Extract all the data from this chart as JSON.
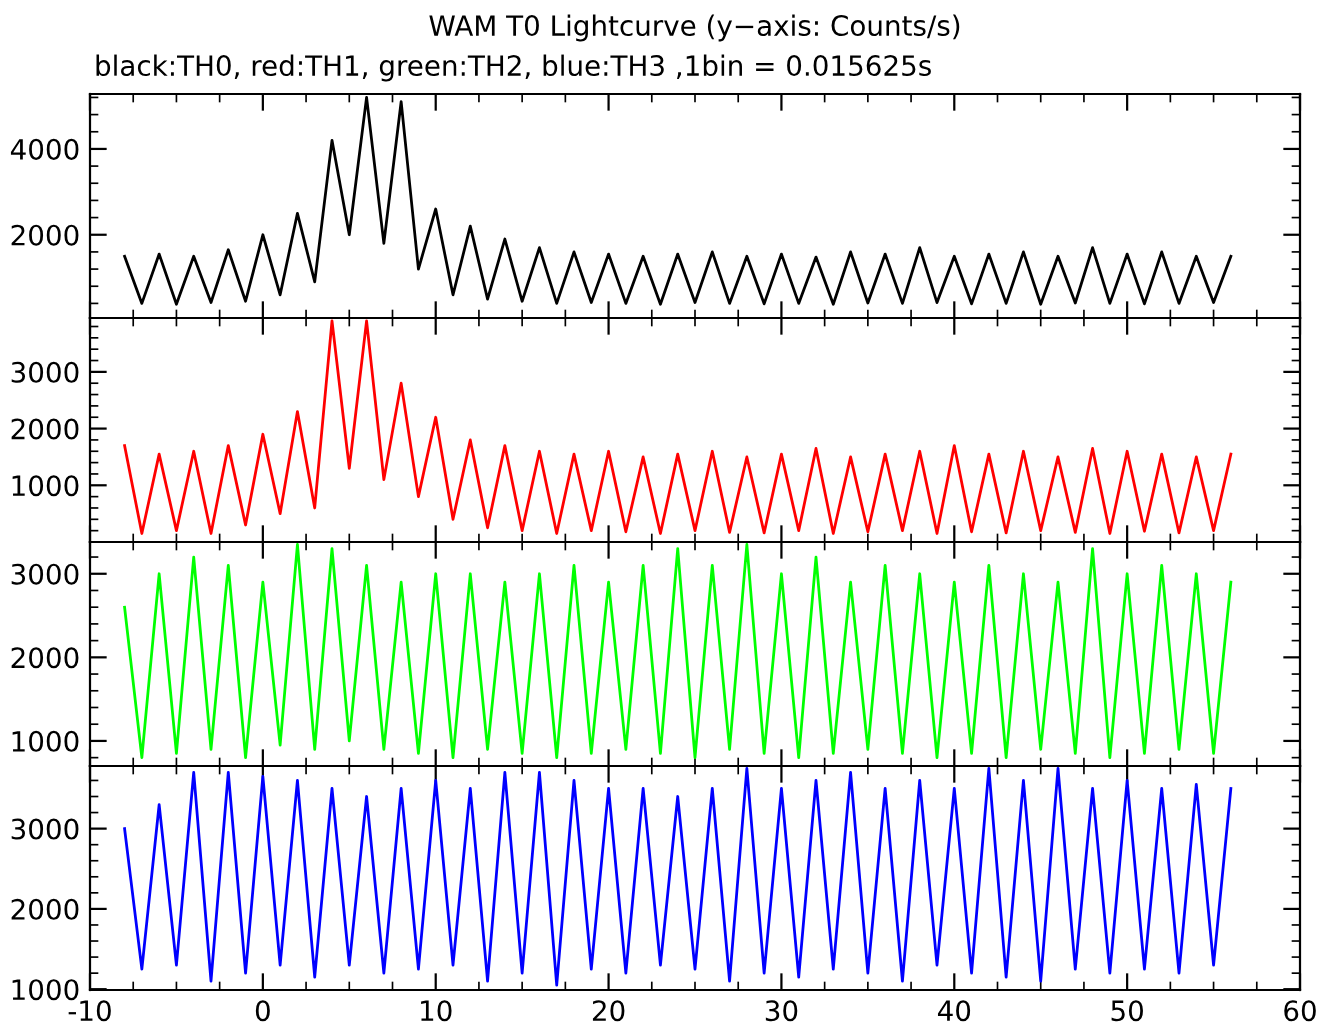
{
  "chart_data": [
    {
      "type": "line",
      "title": "WAM T0 Lightcurve (y−axis: Counts/s)",
      "subtitle": "black:TH0, red:TH1, green:TH2, blue:TH3 ,1bin = 0.015625s",
      "color": "#000000",
      "x": [
        -8,
        -7,
        -6,
        -5,
        -4,
        -3,
        -2,
        -1,
        0,
        1,
        2,
        3,
        4,
        5,
        6,
        7,
        8,
        9,
        10,
        11,
        12,
        13,
        14,
        15,
        16,
        17,
        18,
        19,
        20,
        21,
        22,
        23,
        24,
        25,
        26,
        27,
        28,
        29,
        30,
        31,
        32,
        33,
        34,
        35,
        36,
        37,
        38,
        39,
        40,
        41,
        42,
        43,
        44,
        45,
        46,
        47,
        48,
        49,
        50,
        51,
        52,
        53,
        54,
        55,
        56
      ],
      "values": [
        1500,
        400,
        1550,
        380,
        1500,
        420,
        1650,
        450,
        2000,
        600,
        2500,
        900,
        4200,
        2000,
        5200,
        1800,
        5100,
        1200,
        2600,
        600,
        2200,
        500,
        1900,
        450,
        1700,
        400,
        1600,
        420,
        1550,
        400,
        1500,
        380,
        1550,
        420,
        1600,
        400,
        1500,
        390,
        1550,
        400,
        1480,
        380,
        1600,
        410,
        1550,
        400,
        1700,
        420,
        1500,
        390,
        1550,
        400,
        1600,
        380,
        1500,
        410,
        1700,
        400,
        1550,
        390,
        1600,
        400,
        1500,
        420,
        1500
      ],
      "xlim": [
        -10,
        60
      ],
      "xticks": [
        -10,
        0,
        10,
        20,
        30,
        40,
        50,
        60
      ],
      "ylim": [
        60,
        5280
      ],
      "yticks": [
        2000,
        4000
      ],
      "tick_labels": "y"
    },
    {
      "type": "line",
      "color": "#ff0000",
      "x": [
        -8,
        -7,
        -6,
        -5,
        -4,
        -3,
        -2,
        -1,
        0,
        1,
        2,
        3,
        4,
        5,
        6,
        7,
        8,
        9,
        10,
        11,
        12,
        13,
        14,
        15,
        16,
        17,
        18,
        19,
        20,
        21,
        22,
        23,
        24,
        25,
        26,
        27,
        28,
        29,
        30,
        31,
        32,
        33,
        34,
        35,
        36,
        37,
        38,
        39,
        40,
        41,
        42,
        43,
        44,
        45,
        46,
        47,
        48,
        49,
        50,
        51,
        52,
        53,
        54,
        55,
        56
      ],
      "values": [
        1700,
        150,
        1550,
        200,
        1600,
        150,
        1700,
        300,
        1900,
        500,
        2300,
        600,
        3900,
        1300,
        3900,
        1100,
        2800,
        800,
        2200,
        400,
        1800,
        250,
        1700,
        200,
        1600,
        150,
        1550,
        200,
        1600,
        180,
        1500,
        150,
        1550,
        200,
        1600,
        170,
        1500,
        160,
        1550,
        200,
        1650,
        150,
        1500,
        180,
        1550,
        200,
        1600,
        150,
        1700,
        180,
        1550,
        160,
        1600,
        200,
        1500,
        170,
        1650,
        150,
        1600,
        190,
        1550,
        160,
        1500,
        200,
        1550
      ],
      "xlim": [
        -10,
        60
      ],
      "xticks": [
        -10,
        0,
        10,
        20,
        30,
        40,
        50,
        60
      ],
      "ylim": [
        0,
        3950
      ],
      "yticks": [
        1000,
        2000,
        3000
      ],
      "tick_labels": "y"
    },
    {
      "type": "line",
      "color": "#00ff00",
      "x": [
        -8,
        -7,
        -6,
        -5,
        -4,
        -3,
        -2,
        -1,
        0,
        1,
        2,
        3,
        4,
        5,
        6,
        7,
        8,
        9,
        10,
        11,
        12,
        13,
        14,
        15,
        16,
        17,
        18,
        19,
        20,
        21,
        22,
        23,
        24,
        25,
        26,
        27,
        28,
        29,
        30,
        31,
        32,
        33,
        34,
        35,
        36,
        37,
        38,
        39,
        40,
        41,
        42,
        43,
        44,
        45,
        46,
        47,
        48,
        49,
        50,
        51,
        52,
        53,
        54,
        55,
        56
      ],
      "values": [
        2600,
        800,
        3000,
        850,
        3200,
        900,
        3100,
        800,
        2900,
        950,
        3350,
        900,
        3300,
        1000,
        3100,
        900,
        2900,
        850,
        3000,
        800,
        3000,
        900,
        2900,
        850,
        3000,
        800,
        3100,
        850,
        2900,
        900,
        3100,
        850,
        3300,
        800,
        3100,
        900,
        3350,
        850,
        3000,
        800,
        3200,
        850,
        2900,
        900,
        3100,
        850,
        3000,
        800,
        2900,
        850,
        3100,
        800,
        3000,
        900,
        2900,
        850,
        3300,
        800,
        3000,
        850,
        3100,
        900,
        3000,
        850,
        2900
      ],
      "xlim": [
        -10,
        60
      ],
      "xticks": [
        -10,
        0,
        10,
        20,
        30,
        40,
        50,
        60
      ],
      "ylim": [
        700,
        3380
      ],
      "yticks": [
        1000,
        2000,
        3000
      ],
      "tick_labels": "y"
    },
    {
      "type": "line",
      "color": "#0000ff",
      "x": [
        -8,
        -7,
        -6,
        -5,
        -4,
        -3,
        -2,
        -1,
        0,
        1,
        2,
        3,
        4,
        5,
        6,
        7,
        8,
        9,
        10,
        11,
        12,
        13,
        14,
        15,
        16,
        17,
        18,
        19,
        20,
        21,
        22,
        23,
        24,
        25,
        26,
        27,
        28,
        29,
        30,
        31,
        32,
        33,
        34,
        35,
        36,
        37,
        38,
        39,
        40,
        41,
        42,
        43,
        44,
        45,
        46,
        47,
        48,
        49,
        50,
        51,
        52,
        53,
        54,
        55,
        56
      ],
      "values": [
        3000,
        1250,
        3300,
        1300,
        3700,
        1100,
        3700,
        1200,
        3650,
        1300,
        3600,
        1150,
        3500,
        1300,
        3400,
        1200,
        3500,
        1250,
        3600,
        1300,
        3500,
        1100,
        3700,
        1200,
        3700,
        1050,
        3600,
        1250,
        3500,
        1200,
        3500,
        1300,
        3400,
        1250,
        3500,
        1100,
        3750,
        1200,
        3500,
        1150,
        3600,
        1250,
        3700,
        1200,
        3500,
        1100,
        3600,
        1300,
        3500,
        1200,
        3750,
        1150,
        3600,
        1100,
        3750,
        1250,
        3500,
        1200,
        3600,
        1250,
        3500,
        1200,
        3550,
        1300,
        3500
      ],
      "xlim": [
        -10,
        60
      ],
      "xticks": [
        -10,
        0,
        10,
        20,
        30,
        40,
        50,
        60
      ],
      "ylim": [
        990,
        3780
      ],
      "yticks": [
        1000,
        2000,
        3000
      ]
    }
  ]
}
